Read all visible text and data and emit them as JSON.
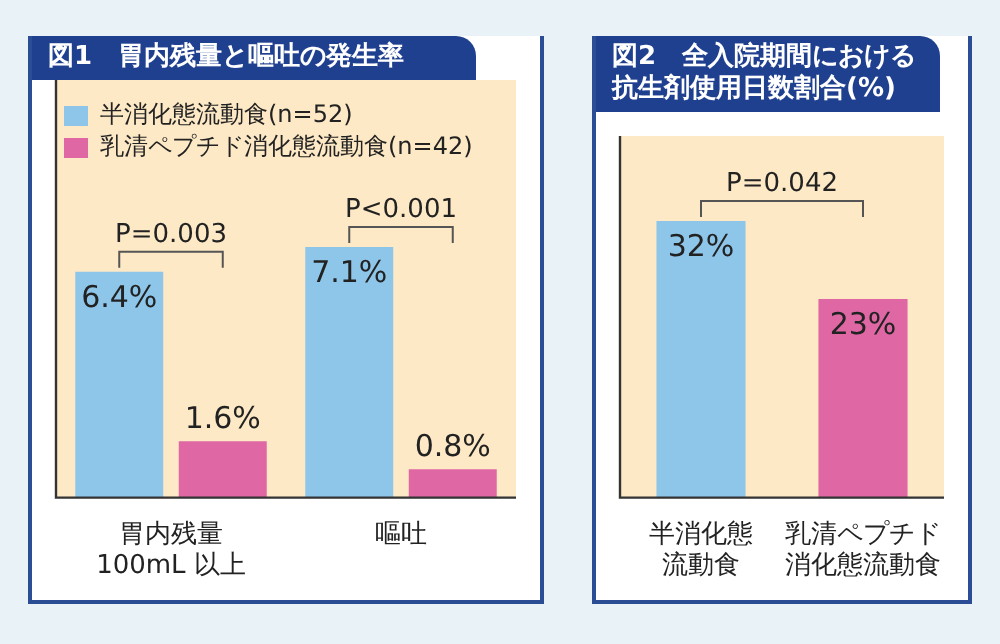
{
  "chart_data": [
    {
      "type": "bar",
      "title": "図1　胃内残量と嘔吐の発生率",
      "categories": [
        "胃内残量\n100mL 以上",
        "嘔吐"
      ],
      "series": [
        {
          "name": "半消化態流動食(n=52)",
          "color": "#8ec6ea",
          "values": [
            6.4,
            7.1
          ],
          "value_labels": [
            "6.4%",
            "7.1%"
          ]
        },
        {
          "name": "乳清ペプチド消化態流動食(n=42)",
          "color": "#de67a4",
          "values": [
            1.6,
            0.8
          ],
          "value_labels": [
            "1.6%",
            "0.8%"
          ]
        }
      ],
      "annotations": [
        "P=0.003",
        "P<0.001"
      ],
      "legend": "top"
    },
    {
      "type": "bar",
      "title": "図2　全入院期間における抗生剤使用日数割合(%)",
      "categories": [
        "半消化態流動食",
        "乳清ペプチド消化態流動食"
      ],
      "values": [
        32,
        23
      ],
      "colors": [
        "#8ec6ea",
        "#de67a4"
      ],
      "value_labels": [
        "32%",
        "23%"
      ],
      "annotations": [
        "P=0.042"
      ]
    }
  ]
}
